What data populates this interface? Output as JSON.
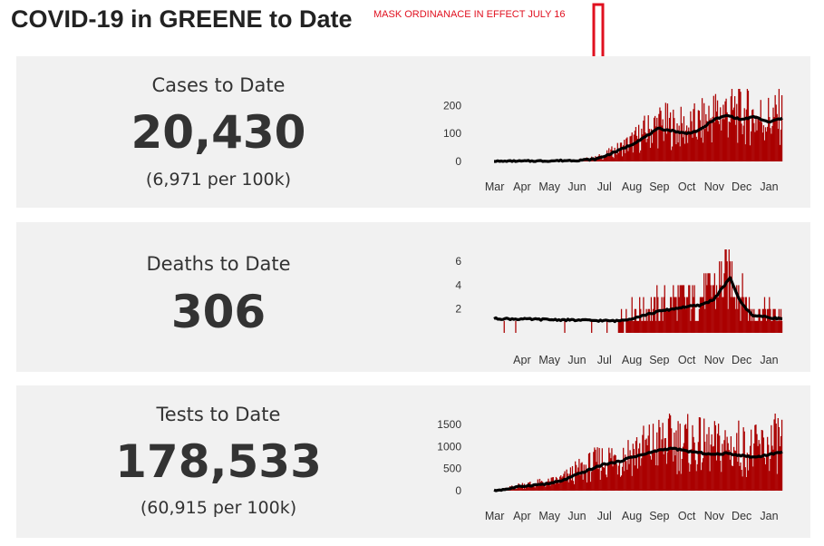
{
  "title": "COVID-19 in GREENE to Date",
  "annotation": "MASK ORDINANACE IN EFFECT JULY 16",
  "colors": {
    "bar": "#aa0000",
    "line": "#000000",
    "panel_bg": "#f1f1f1",
    "annotation": "#e0101f"
  },
  "panels": [
    {
      "label": "Cases to Date",
      "value": "20,430",
      "sub": "(6,971 per 100k)"
    },
    {
      "label": "Deaths to Date",
      "value": "306",
      "sub": ""
    },
    {
      "label": "Tests to Date",
      "value": "178,533",
      "sub": "(60,915 per 100k)"
    }
  ],
  "chart_data": [
    {
      "type": "bar",
      "name": "cases",
      "overlay": "moving average line",
      "ylim": [
        0,
        260
      ],
      "yticks": [
        0,
        100,
        200
      ],
      "xticks": [
        "Mar",
        "Apr",
        "May",
        "Jun",
        "Jul",
        "Aug",
        "Sep",
        "Oct",
        "Nov",
        "Dec",
        "Jan"
      ],
      "x_range_months": [
        0,
        10.5
      ],
      "keypoints": [
        [
          0,
          0
        ],
        [
          1,
          2
        ],
        [
          2,
          3
        ],
        [
          3,
          5
        ],
        [
          3.7,
          12
        ],
        [
          4,
          20
        ],
        [
          4.5,
          40
        ],
        [
          5,
          65
        ],
        [
          5.5,
          95
        ],
        [
          6,
          125
        ],
        [
          6.5,
          115
        ],
        [
          7,
          110
        ],
        [
          7.5,
          125
        ],
        [
          8,
          155
        ],
        [
          8.5,
          170
        ],
        [
          9,
          160
        ],
        [
          9.5,
          150
        ],
        [
          10,
          145
        ],
        [
          10.4,
          150
        ]
      ],
      "line_keypoints": [
        [
          0,
          0
        ],
        [
          1,
          1
        ],
        [
          2,
          2
        ],
        [
          3,
          4
        ],
        [
          3.7,
          8
        ],
        [
          4,
          18
        ],
        [
          4.5,
          38
        ],
        [
          5,
          60
        ],
        [
          5.5,
          88
        ],
        [
          6,
          118
        ],
        [
          6.5,
          110
        ],
        [
          7,
          100
        ],
        [
          7.5,
          112
        ],
        [
          8,
          150
        ],
        [
          8.5,
          165
        ],
        [
          9,
          150
        ],
        [
          9.5,
          160
        ],
        [
          10,
          140
        ],
        [
          10.4,
          153
        ]
      ]
    },
    {
      "type": "bar",
      "name": "deaths",
      "overlay": "moving average line",
      "ylim": [
        0,
        7
      ],
      "yticks": [
        2,
        4,
        6
      ],
      "xticks": [
        "Apr",
        "May",
        "Jun",
        "Jul",
        "Aug",
        "Sep",
        "Oct",
        "Nov",
        "Dec",
        "Jan"
      ],
      "x_range_months": [
        0,
        10.5
      ],
      "keypoints": [
        [
          0,
          1.2
        ],
        [
          3,
          1.0
        ],
        [
          4.5,
          1.0
        ],
        [
          5,
          1.3
        ],
        [
          5.5,
          1.6
        ],
        [
          6,
          1.9
        ],
        [
          6.5,
          2.1
        ],
        [
          7,
          2.3
        ],
        [
          7.5,
          2.4
        ],
        [
          8,
          3.0
        ],
        [
          8.6,
          4.3
        ],
        [
          9,
          2.8
        ],
        [
          9.4,
          1.6
        ],
        [
          10,
          1.4
        ],
        [
          10.4,
          1.3
        ]
      ],
      "line_keypoints": [
        [
          0,
          1.2
        ],
        [
          4.5,
          1.0
        ],
        [
          5,
          1.2
        ],
        [
          5.5,
          1.5
        ],
        [
          6,
          1.8
        ],
        [
          6.5,
          2.0
        ],
        [
          7,
          2.2
        ],
        [
          7.5,
          2.3
        ],
        [
          8,
          2.8
        ],
        [
          8.6,
          4.6
        ],
        [
          9,
          2.5
        ],
        [
          9.4,
          1.5
        ],
        [
          10,
          1.3
        ],
        [
          10.4,
          1.2
        ]
      ]
    },
    {
      "type": "bar",
      "name": "tests",
      "overlay": "moving average line",
      "ylim": [
        0,
        1750
      ],
      "yticks": [
        0,
        500,
        1000,
        1500
      ],
      "xticks": [
        "Mar",
        "Apr",
        "May",
        "Jun",
        "Jul",
        "Aug",
        "Sep",
        "Oct",
        "Nov",
        "Dec",
        "Jan"
      ],
      "x_range_months": [
        0,
        10.5
      ],
      "keypoints": [
        [
          0,
          0
        ],
        [
          0.5,
          50
        ],
        [
          1,
          120
        ],
        [
          1.5,
          150
        ],
        [
          2,
          170
        ],
        [
          2.5,
          250
        ],
        [
          3,
          400
        ],
        [
          3.5,
          520
        ],
        [
          4,
          650
        ],
        [
          4.5,
          700
        ],
        [
          5,
          820
        ],
        [
          5.5,
          900
        ],
        [
          6,
          1000
        ],
        [
          6.5,
          1050
        ],
        [
          7,
          1000
        ],
        [
          7.5,
          950
        ],
        [
          8,
          900
        ],
        [
          8.5,
          950
        ],
        [
          9,
          900
        ],
        [
          9.5,
          850
        ],
        [
          10,
          950
        ],
        [
          10.4,
          1100
        ]
      ],
      "line_keypoints": [
        [
          0,
          0
        ],
        [
          0.5,
          40
        ],
        [
          1,
          100
        ],
        [
          1.5,
          130
        ],
        [
          2,
          160
        ],
        [
          2.5,
          230
        ],
        [
          3,
          360
        ],
        [
          3.5,
          480
        ],
        [
          4,
          600
        ],
        [
          4.5,
          650
        ],
        [
          5,
          760
        ],
        [
          5.5,
          830
        ],
        [
          6,
          920
        ],
        [
          6.5,
          960
        ],
        [
          7,
          900
        ],
        [
          7.5,
          860
        ],
        [
          8,
          820
        ],
        [
          8.5,
          850
        ],
        [
          9,
          800
        ],
        [
          9.5,
          760
        ],
        [
          10,
          820
        ],
        [
          10.4,
          870
        ]
      ]
    }
  ]
}
